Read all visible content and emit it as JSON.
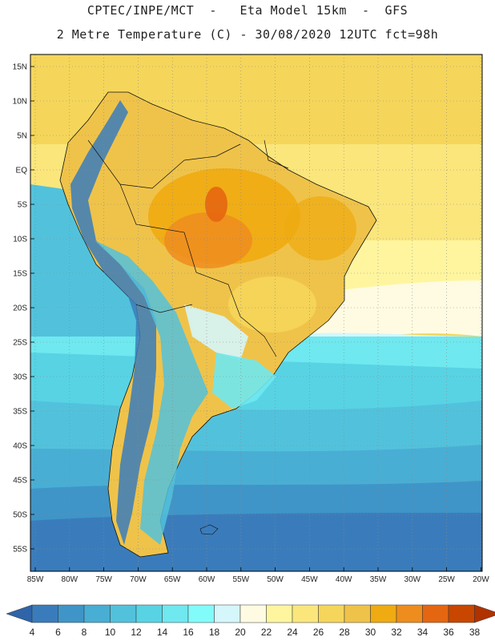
{
  "header": {
    "line1": "CPTEC/INPE/MCT  -   Eta Model 15km  -  GFS",
    "line2": "2 Metre Temperature (C) - 30/08/2020 12UTC fct=98h"
  },
  "map": {
    "region": "South America",
    "variable": "2 Metre Temperature",
    "units": "C",
    "lat_labels": [
      "15N",
      "10N",
      "5N",
      "EQ",
      "5S",
      "10S",
      "15S",
      "20S",
      "25S",
      "30S",
      "35S",
      "40S",
      "45S",
      "50S",
      "55S"
    ],
    "lon_labels": [
      "85W",
      "80W",
      "75W",
      "70W",
      "65W",
      "60W",
      "55W",
      "50W",
      "45W",
      "40W",
      "35W",
      "30W",
      "25W",
      "20W"
    ]
  },
  "colorbar": {
    "levels": [
      "4",
      "6",
      "8",
      "10",
      "12",
      "14",
      "16",
      "18",
      "20",
      "22",
      "24",
      "26",
      "28",
      "30",
      "32",
      "34",
      "36",
      "38"
    ],
    "colors": [
      "#2f64a8",
      "#3a7cbb",
      "#3f95c8",
      "#49aed4",
      "#52c2dc",
      "#58d3e4",
      "#6fe8ef",
      "#82fbfb",
      "#d5f6fb",
      "#fffbe2",
      "#fff59f",
      "#fbe67c",
      "#f5d65a",
      "#efc34a",
      "#efab11",
      "#ee8c1e",
      "#e56610",
      "#c84600",
      "#b03200"
    ]
  }
}
